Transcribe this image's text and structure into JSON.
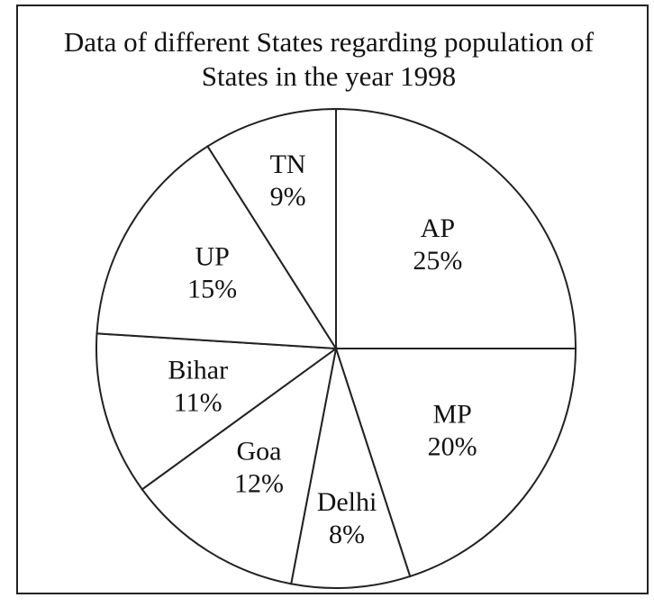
{
  "chart_data": {
    "type": "pie",
    "title": "Data of different States regarding population of States in the year 1998",
    "categories": [
      "AP",
      "MP",
      "Delhi",
      "Goa",
      "Bihar",
      "UP",
      "TN"
    ],
    "values": [
      25,
      20,
      8,
      12,
      11,
      15,
      9
    ],
    "value_labels": [
      "25%",
      "20%",
      "8%",
      "12%",
      "11%",
      "15%",
      "9%"
    ],
    "color": "#ffffff"
  }
}
